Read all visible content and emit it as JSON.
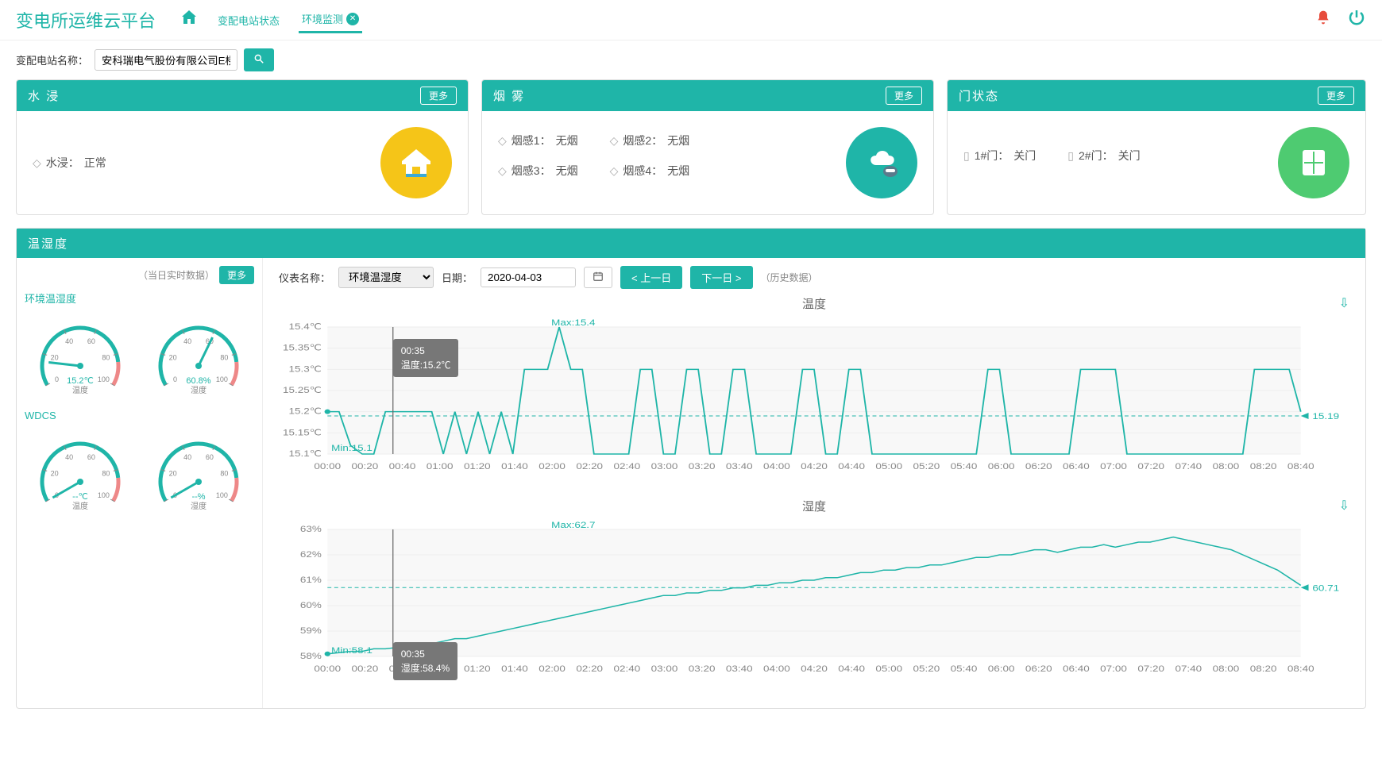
{
  "app_title": "变电所运维云平台",
  "tabs": {
    "status": "变配电站状态",
    "env": "环境监测"
  },
  "filter": {
    "label": "变配电站名称：",
    "value": "安科瑞电气股份有限公司E楼"
  },
  "more_label": "更多",
  "cards": {
    "water": {
      "title": "水 浸",
      "items": [
        {
          "label": "水浸：",
          "value": "正常"
        }
      ]
    },
    "smoke": {
      "title": "烟 雾",
      "items": [
        {
          "label": "烟感1：",
          "value": "无烟"
        },
        {
          "label": "烟感2：",
          "value": "无烟"
        },
        {
          "label": "烟感3：",
          "value": "无烟"
        },
        {
          "label": "烟感4：",
          "value": "无烟"
        }
      ]
    },
    "door": {
      "title": "门状态",
      "items": [
        {
          "label": "1#门：",
          "value": "关门"
        },
        {
          "label": "2#门：",
          "value": "关门"
        }
      ]
    }
  },
  "temphum": {
    "section_title": "温湿度",
    "realtime_label": "（当日实时数据）",
    "gauges": {
      "scale": {
        "min": 0,
        "max": 100,
        "ticks": [
          0,
          20,
          40,
          60,
          80,
          100
        ]
      },
      "colors": {
        "arc_main": "#1fb5a8",
        "arc_warn": "#e88",
        "needle": "#1fb5a8",
        "text": "#1fb5a8"
      },
      "groups": [
        {
          "name": "环境温湿度",
          "items": [
            {
              "label": "温度",
              "value": 15.2,
              "display": "15.2℃"
            },
            {
              "label": "湿度",
              "value": 60.8,
              "display": "60.8%"
            }
          ]
        },
        {
          "name": "WDCS",
          "items": [
            {
              "label": "温度",
              "value": null,
              "display": "--℃"
            },
            {
              "label": "湿度",
              "value": null,
              "display": "--%"
            }
          ]
        }
      ]
    },
    "controls": {
      "meter_label": "仪表名称：",
      "meter_value": "环境温湿度",
      "date_label": "日期：",
      "date_value": "2020-04-03",
      "prev": "上一日",
      "next": "下一日",
      "history": "（历史数据）"
    },
    "charts": {
      "x_labels": [
        "00:00",
        "00:20",
        "00:40",
        "01:00",
        "01:20",
        "01:40",
        "02:00",
        "02:20",
        "02:40",
        "03:00",
        "03:20",
        "03:40",
        "04:00",
        "04:20",
        "04:40",
        "05:00",
        "05:20",
        "05:40",
        "06:00",
        "06:20",
        "06:40",
        "07:00",
        "07:20",
        "07:40",
        "08:00",
        "08:20",
        "08:40"
      ],
      "cursor_time": "00:35",
      "colors": {
        "line": "#1fb5a8",
        "grid": "#eeeeee",
        "axis_text": "#888888",
        "bg": "#ffffff",
        "tooltip_bg": "#777777"
      },
      "temp": {
        "title": "温度",
        "y_min": 15.1,
        "y_max": 15.4,
        "y_step": 0.05,
        "unit": "℃",
        "max_label": "Max:15.4",
        "min_label": "Min:15.1",
        "ref_value": 15.19,
        "ref_label": "15.19",
        "tooltip": {
          "time": "00:35",
          "text": "温度:15.2℃"
        },
        "values": [
          15.2,
          15.2,
          15.12,
          15.1,
          15.1,
          15.2,
          15.2,
          15.2,
          15.2,
          15.2,
          15.1,
          15.2,
          15.1,
          15.2,
          15.1,
          15.2,
          15.1,
          15.3,
          15.3,
          15.3,
          15.4,
          15.3,
          15.3,
          15.1,
          15.1,
          15.1,
          15.1,
          15.3,
          15.3,
          15.1,
          15.1,
          15.3,
          15.3,
          15.1,
          15.1,
          15.3,
          15.3,
          15.1,
          15.1,
          15.1,
          15.1,
          15.3,
          15.3,
          15.1,
          15.1,
          15.3,
          15.3,
          15.1,
          15.1,
          15.1,
          15.1,
          15.1,
          15.1,
          15.1,
          15.1,
          15.1,
          15.1,
          15.3,
          15.3,
          15.1,
          15.1,
          15.1,
          15.1,
          15.1,
          15.1,
          15.3,
          15.3,
          15.3,
          15.3,
          15.1,
          15.1,
          15.1,
          15.1,
          15.1,
          15.1,
          15.1,
          15.1,
          15.1,
          15.1,
          15.1,
          15.3,
          15.3,
          15.3,
          15.3,
          15.2
        ]
      },
      "hum": {
        "title": "湿度",
        "y_min": 58,
        "y_max": 63,
        "y_step": 1,
        "unit": "%",
        "max_label": "Max:62.7",
        "min_label": "Min:58.1",
        "ref_value": 60.71,
        "ref_label": "60.71",
        "tooltip": {
          "time": "00:35",
          "text": "湿度:58.4%"
        },
        "values": [
          58.1,
          58.15,
          58.2,
          58.2,
          58.3,
          58.3,
          58.35,
          58.4,
          58.4,
          58.5,
          58.6,
          58.7,
          58.7,
          58.8,
          58.9,
          59.0,
          59.1,
          59.2,
          59.3,
          59.4,
          59.5,
          59.6,
          59.7,
          59.8,
          59.9,
          60.0,
          60.1,
          60.2,
          60.3,
          60.4,
          60.4,
          60.5,
          60.5,
          60.6,
          60.6,
          60.7,
          60.7,
          60.8,
          60.8,
          60.9,
          60.9,
          61.0,
          61.0,
          61.1,
          61.1,
          61.2,
          61.3,
          61.3,
          61.4,
          61.4,
          61.5,
          61.5,
          61.6,
          61.6,
          61.7,
          61.8,
          61.9,
          61.9,
          62.0,
          62.0,
          62.1,
          62.2,
          62.2,
          62.1,
          62.2,
          62.3,
          62.3,
          62.4,
          62.3,
          62.4,
          62.5,
          62.5,
          62.6,
          62.7,
          62.6,
          62.5,
          62.4,
          62.3,
          62.2,
          62.0,
          61.8,
          61.6,
          61.4,
          61.1,
          60.8
        ]
      }
    }
  }
}
